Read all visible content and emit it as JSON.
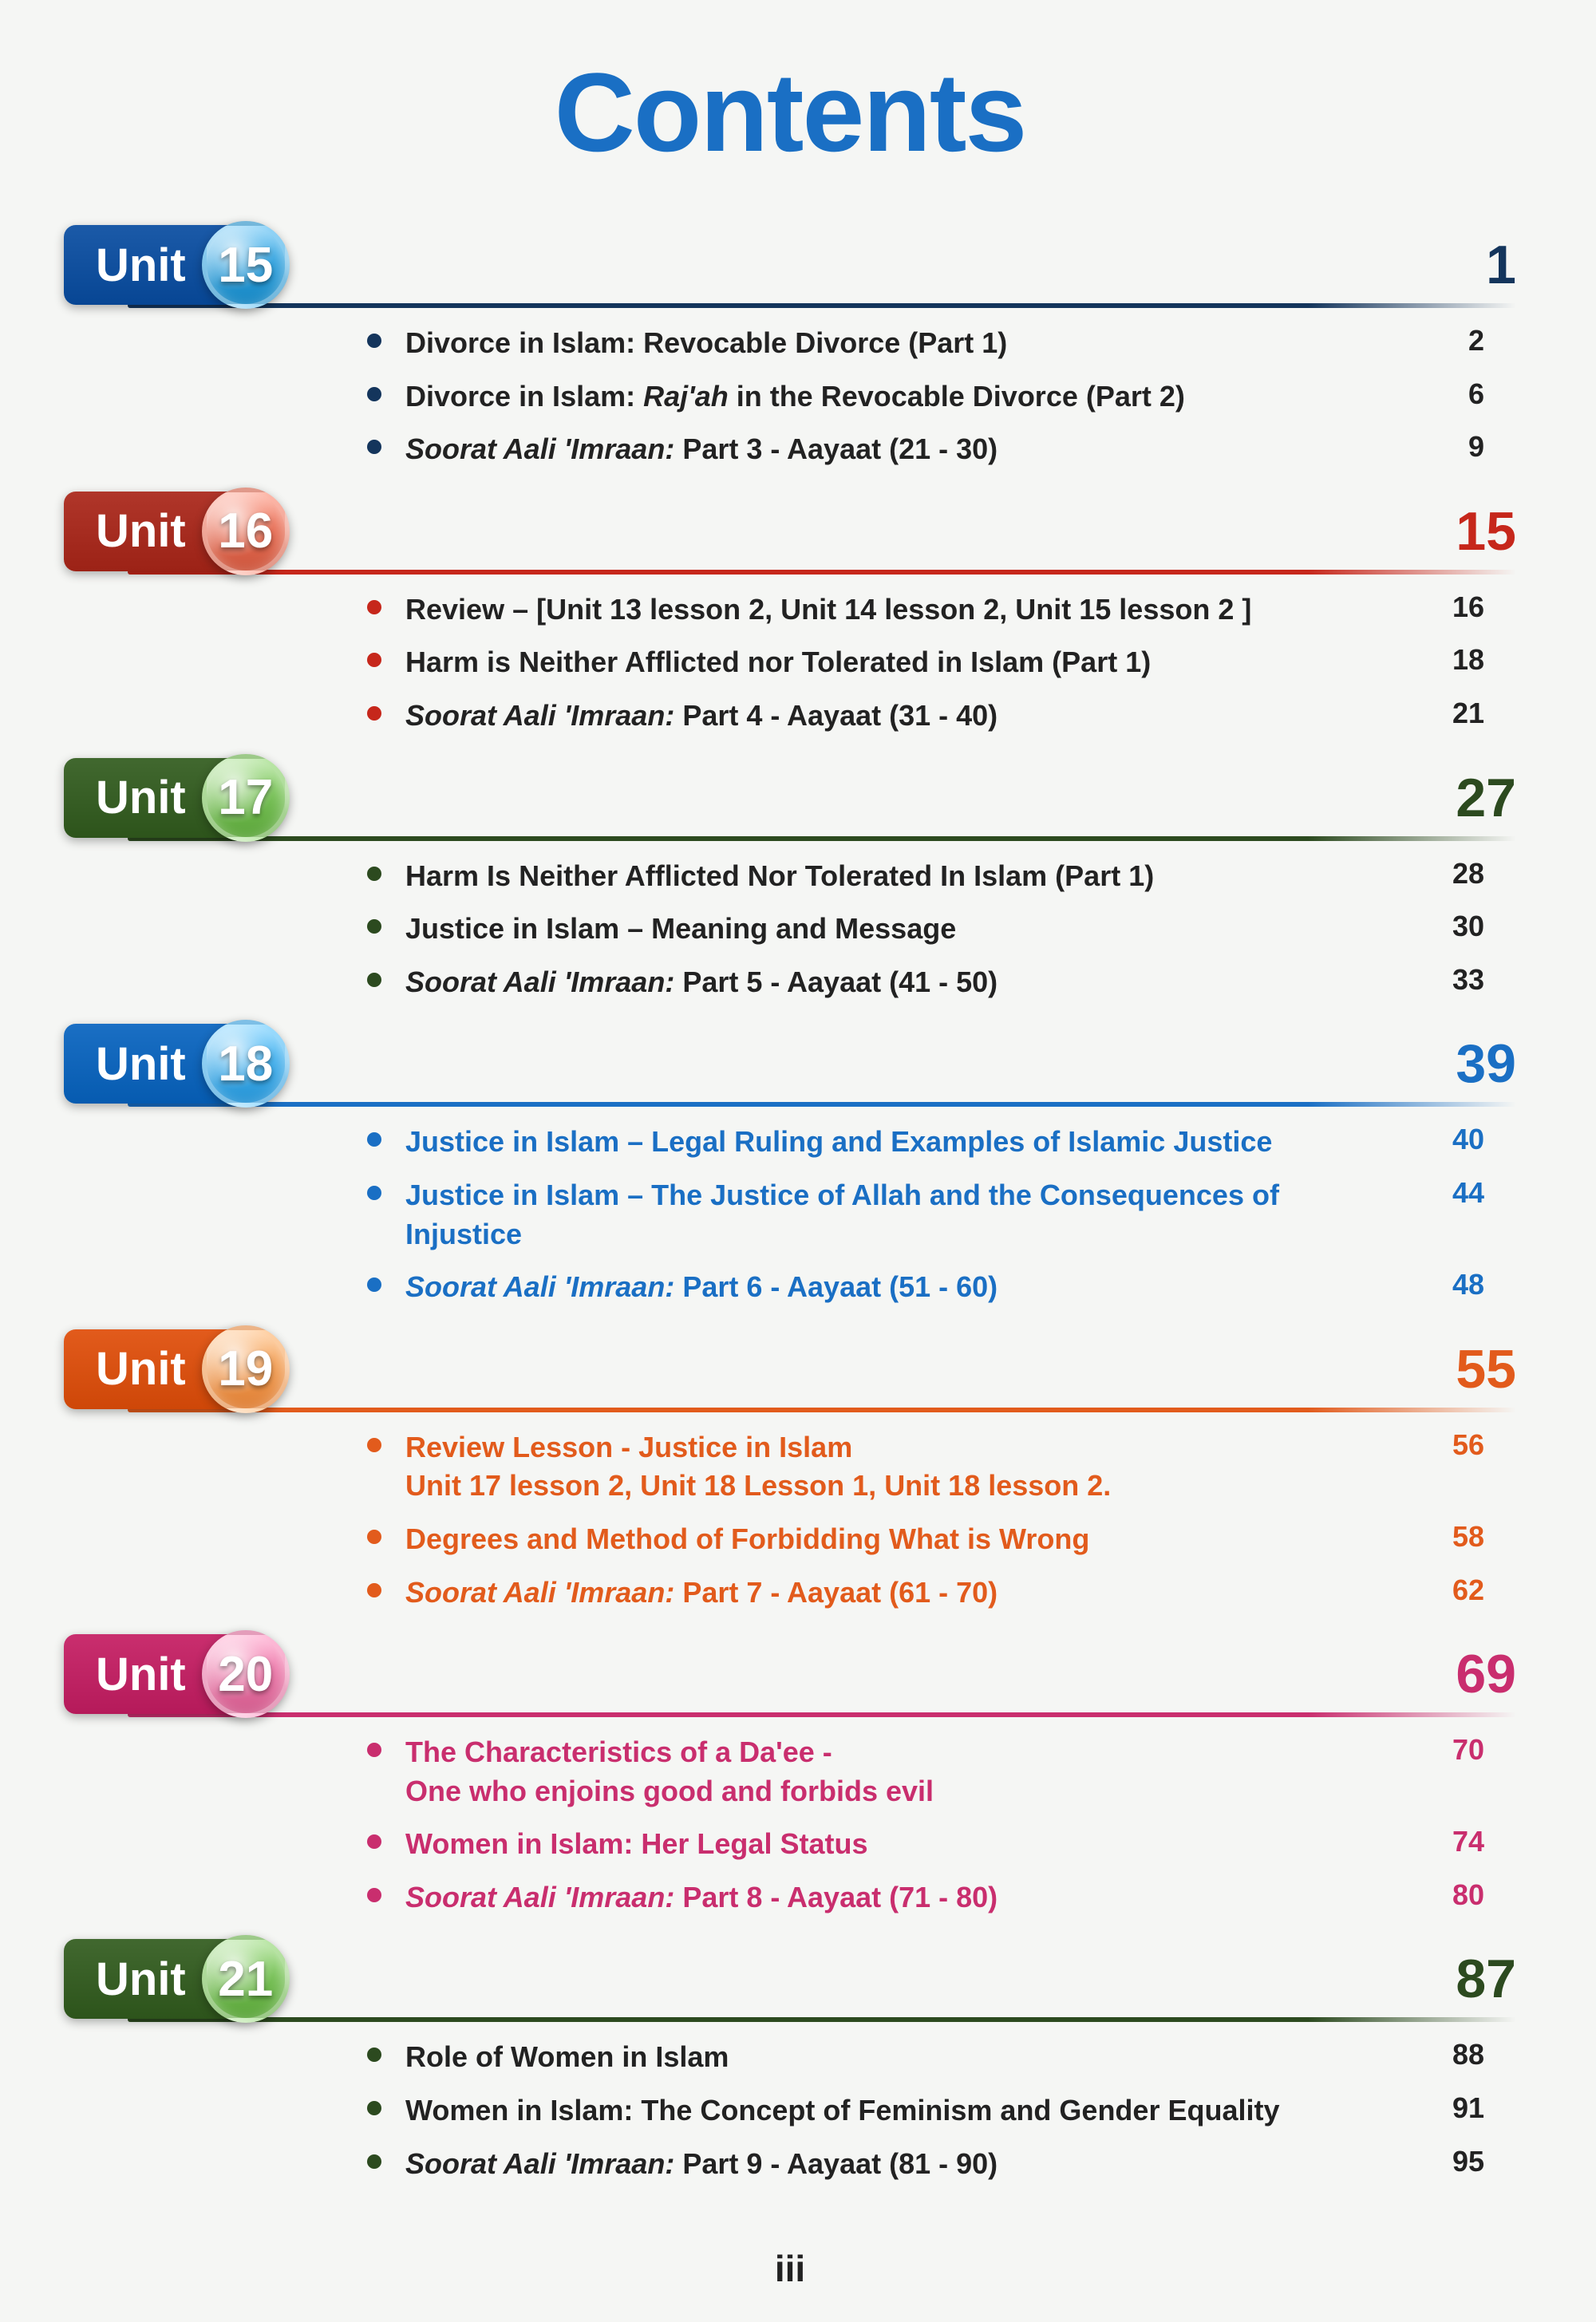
{
  "title": "Contents",
  "title_color": "#1a6fc4",
  "folio": "iii",
  "units": [
    {
      "label": "Unit",
      "number": "15",
      "page": "1",
      "tab_bg": "#1b5aa8",
      "circle_bg": "#2a9ad6",
      "accent": "#14355c",
      "lesson_color": "#222",
      "page_color": "#222",
      "lessons": [
        {
          "text": "Divorce in Islam: Revocable Divorce (Part 1)",
          "page": "2"
        },
        {
          "text": "Divorce in Islam: <em>Raj'ah</em> in the Revocable Divorce (Part 2)",
          "page": "6"
        },
        {
          "text": "<em>Soorat Aali 'Imraan:</em> Part 3 - Aayaat (21 - 30)",
          "page": "9"
        }
      ]
    },
    {
      "label": "Unit",
      "number": "16",
      "page": "15",
      "tab_bg": "#b0362a",
      "circle_bg": "#e0684f",
      "accent": "#c6271b",
      "lesson_color": "#222",
      "page_color": "#222",
      "lessons": [
        {
          "text": "Review – [Unit 13 lesson 2, Unit 14 lesson 2, Unit 15 lesson 2 ]",
          "page": "16"
        },
        {
          "text": "Harm is Neither Afflicted nor Tolerated in Islam (Part 1)",
          "page": "18"
        },
        {
          "text": "<em>Soorat Aali 'Imraan:</em> Part 4 - Aayaat (31 - 40)",
          "page": "21"
        }
      ]
    },
    {
      "label": "Unit",
      "number": "17",
      "page": "27",
      "tab_bg": "#41682f",
      "circle_bg": "#6fb94e",
      "accent": "#2c4a1f",
      "lesson_color": "#222",
      "page_color": "#222",
      "lessons": [
        {
          "text": "Harm Is Neither Afflicted Nor Tolerated In Islam (Part 1)",
          "page": "28"
        },
        {
          "text": "Justice in Islam – Meaning and Message",
          "page": "30"
        },
        {
          "text": "<em>Soorat Aali 'Imraan:</em> Part 5 - Aayaat (41 - 50)",
          "page": "33"
        }
      ]
    },
    {
      "label": "Unit",
      "number": "18",
      "page": "39",
      "tab_bg": "#1a6fc4",
      "circle_bg": "#3aa7e8",
      "accent": "#1a6fc4",
      "lesson_color": "#1a6fc4",
      "page_color": "#1a6fc4",
      "lessons": [
        {
          "text": "Justice in Islam – Legal Ruling and Examples of Islamic Justice",
          "page": "40"
        },
        {
          "text": "Justice in Islam – The Justice of Allah and the Consequences of Injustice",
          "page": "44"
        },
        {
          "text": "<em>Soorat Aali 'Imraan:</em> Part 6 - Aayaat (51 - 60)",
          "page": "48"
        }
      ]
    },
    {
      "label": "Unit",
      "number": "19",
      "page": "55",
      "tab_bg": "#e25b1c",
      "circle_bg": "#f3944a",
      "accent": "#e25b1c",
      "lesson_color": "#e25b1c",
      "page_color": "#e25b1c",
      "lessons": [
        {
          "text": "Review Lesson - Justice in Islam<br>Unit 17 lesson 2, Unit 18 Lesson 1, Unit 18 lesson 2.",
          "page": "56"
        },
        {
          "text": "Degrees and Method of Forbidding What is Wrong",
          "page": "58"
        },
        {
          "text": "<em>Soorat Aali 'Imraan:</em> Part 7 - Aayaat (61 - 70)",
          "page": "62"
        }
      ]
    },
    {
      "label": "Unit",
      "number": "20",
      "page": "69",
      "tab_bg": "#c92e6e",
      "circle_bg": "#e56fa0",
      "accent": "#c92e6e",
      "lesson_color": "#c92e6e",
      "page_color": "#c92e6e",
      "lessons": [
        {
          "text": "The Characteristics of a Da'ee -<br>One who enjoins good and forbids evil",
          "page": "70"
        },
        {
          "text": "Women in Islam: Her Legal Status",
          "page": "74"
        },
        {
          "text": "<em>Soorat Aali 'Imraan:</em> Part 8 - Aayaat (71 - 80)",
          "page": "80"
        }
      ]
    },
    {
      "label": "Unit",
      "number": "21",
      "page": "87",
      "tab_bg": "#41682f",
      "circle_bg": "#6fb94e",
      "accent": "#2c4a1f",
      "lesson_color": "#222",
      "page_color": "#222",
      "lessons": [
        {
          "text": "Role of Women in Islam",
          "page": "88"
        },
        {
          "text": "Women in Islam: The Concept of Feminism and Gender Equality",
          "page": "91"
        },
        {
          "text": "<em>Soorat Aali 'Imraan:</em> Part 9 - Aayaat (81 - 90)",
          "page": "95"
        }
      ]
    }
  ]
}
